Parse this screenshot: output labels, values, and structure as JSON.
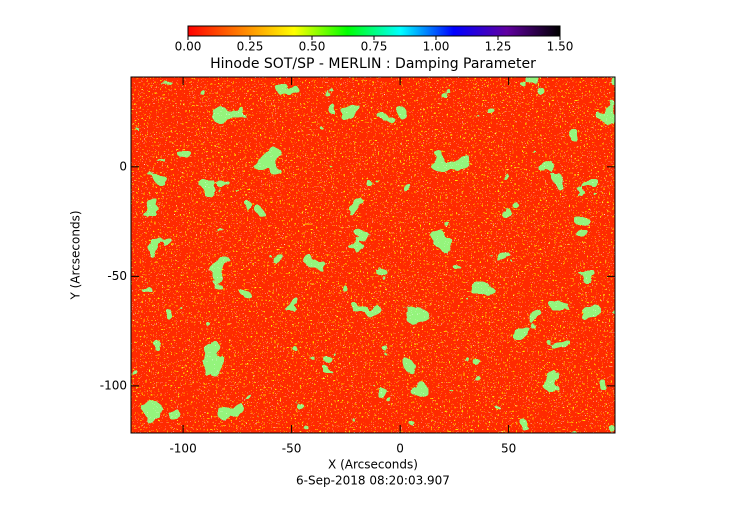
{
  "chart_data": {
    "type": "image",
    "title": "Hinode SOT/SP - MERLIN : Damping Parameter",
    "x_label": "X (Arcseconds)",
    "y_label": "Y (Arcseconds)",
    "footer": "6-Sep-2018 08:20:03.907",
    "xlim": [
      -124,
      99
    ],
    "xticks": [
      -100,
      -50,
      0,
      50
    ],
    "ylim": [
      -121.5,
      41
    ],
    "yticks": [
      0,
      -50,
      -100
    ],
    "colorbar": {
      "lim": [
        0,
        1.5
      ],
      "ticks": [
        {
          "value": 0,
          "label": "0.00"
        },
        {
          "value": 0.25,
          "label": "0.25"
        },
        {
          "value": 0.5,
          "label": "0.50"
        },
        {
          "value": 0.75,
          "label": "0.75"
        },
        {
          "value": 1,
          "label": "1.00"
        },
        {
          "value": 1.25,
          "label": "1.25"
        },
        {
          "value": 1.5,
          "label": "1.50"
        }
      ],
      "colors": [
        "#ff0000",
        "#ff8000",
        "#ffff00",
        "#00ff00",
        "#00ffff",
        "#0000ff",
        "#6000a0",
        "#000000"
      ]
    }
  }
}
